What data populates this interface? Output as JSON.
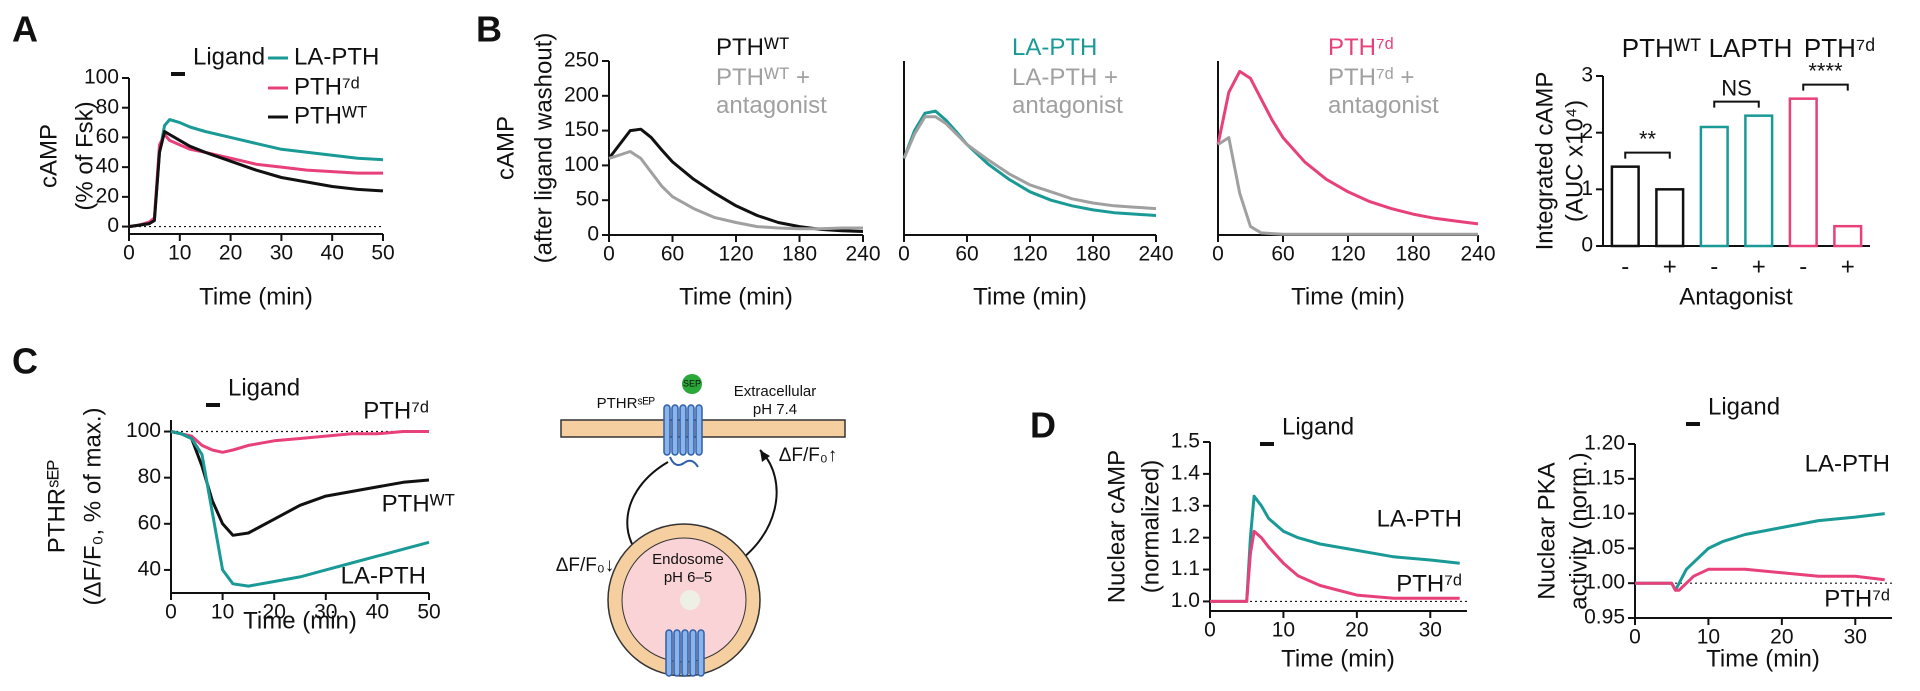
{
  "chart_data": [
    {
      "type": "line",
      "panel": "A",
      "annotation": "Ligand",
      "ylabel": [
        "cAMP",
        "(% of Fsk)"
      ],
      "xlabel": "Time (min)",
      "xlim": [
        0,
        50
      ],
      "xticks": [
        0,
        10,
        20,
        30,
        40,
        50
      ],
      "ylim": [
        -5,
        100
      ],
      "yticks": [
        0,
        20,
        40,
        60,
        80,
        100
      ],
      "reference_line": 0,
      "x": [
        0,
        2,
        4,
        5,
        6,
        7,
        8,
        10,
        12,
        15,
        20,
        25,
        30,
        35,
        40,
        45,
        50
      ],
      "series": [
        {
          "name": "LA-PTH",
          "color": "#1a9a96",
          "values": [
            0,
            1,
            2,
            5,
            50,
            68,
            72,
            70,
            67,
            64,
            60,
            56,
            52,
            50,
            48,
            46,
            45
          ]
        },
        {
          "name": "PTH⁷ᵈ",
          "color": "#e8407a",
          "values": [
            0,
            1,
            3,
            6,
            55,
            62,
            58,
            55,
            52,
            50,
            46,
            42,
            40,
            38,
            37,
            36,
            36
          ]
        },
        {
          "name": "PTHᵂᵀ",
          "color": "#111111",
          "values": [
            0,
            1,
            2,
            4,
            50,
            64,
            62,
            58,
            54,
            50,
            44,
            38,
            33,
            30,
            27,
            25,
            24
          ]
        }
      ]
    },
    {
      "type": "line",
      "panel": "B",
      "ylabel": [
        "cAMP",
        "(after ligand washout)"
      ],
      "xlabel": "Time (min)",
      "xlim": [
        0,
        240
      ],
      "xticks": [
        0,
        60,
        120,
        180,
        240
      ],
      "ylim": [
        0,
        250
      ],
      "yticks": [
        0,
        50,
        100,
        150,
        200,
        250
      ],
      "x": [
        0,
        10,
        20,
        30,
        40,
        50,
        60,
        80,
        100,
        120,
        140,
        160,
        180,
        200,
        220,
        240
      ],
      "series": [
        {
          "name": "PTHᵂᵀ",
          "color": "#111111",
          "values": [
            110,
            130,
            150,
            152,
            140,
            122,
            105,
            80,
            60,
            42,
            28,
            18,
            12,
            8,
            6,
            5
          ]
        },
        {
          "name": "PTHᵂᵀ + antagonist",
          "color": "#a0a0a0",
          "values": [
            110,
            115,
            120,
            110,
            90,
            70,
            55,
            38,
            25,
            18,
            12,
            10,
            9,
            9,
            10,
            10
          ]
        }
      ]
    },
    {
      "type": "line",
      "xlabel": "Time (min)",
      "xlim": [
        0,
        240
      ],
      "xticks": [
        0,
        60,
        120,
        180,
        240
      ],
      "ylim": [
        0,
        250
      ],
      "x": [
        0,
        10,
        20,
        30,
        40,
        50,
        60,
        80,
        100,
        120,
        140,
        160,
        180,
        200,
        220,
        240
      ],
      "series": [
        {
          "name": "LA-PTH",
          "color": "#1a9a96",
          "values": [
            110,
            150,
            175,
            178,
            165,
            148,
            130,
            102,
            80,
            62,
            50,
            42,
            36,
            32,
            30,
            28
          ]
        },
        {
          "name": "LA-PTH + antagonist",
          "color": "#a0a0a0",
          "values": [
            110,
            145,
            170,
            170,
            160,
            145,
            130,
            108,
            88,
            72,
            62,
            52,
            46,
            42,
            40,
            38
          ]
        }
      ]
    },
    {
      "type": "line",
      "xlabel": "Time (min)",
      "xlim": [
        0,
        240
      ],
      "xticks": [
        0,
        60,
        120,
        180,
        240
      ],
      "ylim": [
        0,
        250
      ],
      "x": [
        0,
        10,
        20,
        30,
        40,
        50,
        60,
        80,
        100,
        120,
        140,
        160,
        180,
        200,
        220,
        240
      ],
      "series": [
        {
          "name": "PTH⁷ᵈ",
          "color": "#e8407a",
          "values": [
            130,
            205,
            235,
            225,
            195,
            165,
            140,
            105,
            80,
            62,
            48,
            38,
            30,
            24,
            20,
            16
          ]
        },
        {
          "name": "PTH⁷ᵈ + antagonist",
          "color": "#a0a0a0",
          "values": [
            130,
            140,
            60,
            12,
            3,
            2,
            1,
            1,
            1,
            1,
            1,
            1,
            1,
            1,
            1,
            1
          ]
        }
      ]
    },
    {
      "type": "bar",
      "ylabel": [
        "Integrated cAMP",
        "(AUC x10⁴)"
      ],
      "xlabel": "Antagonist",
      "groups": [
        "PTHᵂᵀ",
        "LAPTH",
        "PTH⁷ᵈ"
      ],
      "group_colors": [
        "#111111",
        "#1a9a96",
        "#e8407a"
      ],
      "categories": [
        "-",
        "+",
        "-",
        "+",
        "-",
        "+"
      ],
      "values": [
        1.4,
        1.0,
        2.1,
        2.3,
        2.6,
        0.35
      ],
      "significance": [
        "**",
        "NS",
        "****"
      ],
      "ylim": [
        0,
        3
      ],
      "yticks": [
        0,
        1,
        2,
        3
      ]
    },
    {
      "type": "line",
      "panel": "C",
      "annotation": "Ligand",
      "ylabel": [
        "PTHRˢᴱᴾ",
        "(ΔF/F₀, % of max.)"
      ],
      "xlabel": "Time (min)",
      "xlim": [
        0,
        50
      ],
      "xticks": [
        0,
        10,
        20,
        30,
        40,
        50
      ],
      "ylim": [
        30,
        105
      ],
      "yticks": [
        40,
        60,
        80,
        100
      ],
      "reference_line": 100,
      "x": [
        0,
        2,
        4,
        6,
        8,
        10,
        12,
        15,
        20,
        25,
        30,
        35,
        40,
        45,
        50
      ],
      "series": [
        {
          "name": "PTH⁷ᵈ",
          "color": "#e8407a",
          "values": [
            100,
            99,
            98,
            94,
            92,
            91,
            92,
            94,
            96,
            97,
            98,
            99,
            99,
            100,
            100
          ]
        },
        {
          "name": "PTHᵂᵀ",
          "color": "#111111",
          "values": [
            100,
            99,
            97,
            85,
            70,
            60,
            55,
            56,
            62,
            68,
            72,
            74,
            76,
            78,
            79
          ]
        },
        {
          "name": "LA-PTH",
          "color": "#1a9a96",
          "values": [
            100,
            99,
            97,
            90,
            65,
            40,
            34,
            33,
            35,
            37,
            40,
            43,
            46,
            49,
            52
          ]
        }
      ]
    },
    {
      "type": "line",
      "panel": "D",
      "annotation": "Ligand",
      "ylabel": [
        "Nuclear cAMP",
        "(normalized)"
      ],
      "xlabel": "Time (min)",
      "xlim": [
        0,
        35
      ],
      "xticks": [
        0,
        10,
        20,
        30
      ],
      "ylim": [
        0.97,
        1.5
      ],
      "reference_line": 1.0,
      "yticks": [
        {
          "value": 1.0,
          "label": "1.0"
        },
        1.1,
        1.2,
        1.3,
        1.4,
        1.5
      ],
      "x": [
        0,
        2,
        4,
        5,
        5.5,
        6,
        7,
        8,
        10,
        12,
        15,
        20,
        25,
        30,
        34
      ],
      "series": [
        {
          "name": "LA-PTH",
          "color": "#1a9a96",
          "values": [
            1.0,
            1.0,
            1.0,
            1.0,
            1.2,
            1.33,
            1.3,
            1.26,
            1.22,
            1.2,
            1.18,
            1.16,
            1.14,
            1.13,
            1.12
          ]
        },
        {
          "name": "PTH⁷ᵈ",
          "color": "#e8407a",
          "values": [
            1.0,
            1.0,
            1.0,
            1.0,
            1.15,
            1.22,
            1.2,
            1.17,
            1.12,
            1.08,
            1.05,
            1.02,
            1.01,
            1.01,
            1.01
          ]
        }
      ]
    },
    {
      "type": "line",
      "annotation": "Ligand",
      "ylabel": [
        "Nuclear PKA",
        "activity (norm.)"
      ],
      "xlabel": "Time (min)",
      "xlim": [
        0,
        35
      ],
      "xticks": [
        0,
        10,
        20,
        30
      ],
      "ylim": [
        0.95,
        1.2
      ],
      "reference_line": 1.0,
      "yticks": [
        {
          "value": 0.95,
          "label": "0.95"
        },
        {
          "value": 1.0,
          "label": "1.00"
        },
        {
          "value": 1.05,
          "label": "1.05"
        },
        {
          "value": 1.1,
          "label": "1.10"
        },
        {
          "value": 1.15,
          "label": "1.15"
        },
        {
          "value": 1.2,
          "label": "1.20"
        }
      ],
      "x": [
        0,
        2,
        4,
        5,
        5.5,
        6,
        7,
        8,
        10,
        12,
        15,
        20,
        25,
        30,
        34
      ],
      "series": [
        {
          "name": "LA-PTH",
          "color": "#1a9a96",
          "values": [
            1.0,
            1.0,
            1.0,
            1.0,
            0.99,
            1.0,
            1.02,
            1.03,
            1.05,
            1.06,
            1.07,
            1.08,
            1.09,
            1.095,
            1.1
          ]
        },
        {
          "name": "PTH⁷ᵈ",
          "color": "#e8407a",
          "values": [
            1.0,
            1.0,
            1.0,
            1.0,
            0.99,
            0.99,
            1.0,
            1.01,
            1.02,
            1.02,
            1.02,
            1.015,
            1.01,
            1.01,
            1.005
          ]
        }
      ]
    }
  ],
  "diagram": {
    "receptor": "PTHRˢᴱᴾ",
    "tag": "SEP",
    "outside": [
      "Extracellular",
      "pH 7.4"
    ],
    "up": "ΔF/F₀↑",
    "down": "ΔF/F₀↓",
    "endosome": [
      "Endosome",
      "pH 6–5"
    ]
  }
}
